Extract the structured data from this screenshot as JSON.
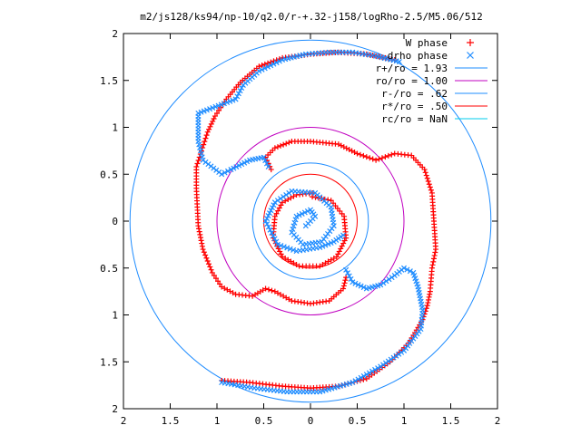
{
  "chart_data": {
    "type": "scatter",
    "title": "m2/js128/ks94/np-10/q2.0/r-+.32-j158/logRho-2.5/M5.06/512",
    "xlabel": "",
    "ylabel": "",
    "xlim": [
      -2,
      2
    ],
    "ylim": [
      -2,
      2
    ],
    "x_tick_labels": [
      "2",
      "1.5",
      "1",
      "0.5",
      "0",
      "0.5",
      "1",
      "1.5",
      "2"
    ],
    "y_tick_labels": [
      "2",
      "1.5",
      "1",
      "0.5",
      "0",
      "0.5",
      "1",
      "1.5",
      "2"
    ],
    "grid": false,
    "legend_position": "top-right",
    "series": [
      {
        "name": "W phase",
        "marker": "+",
        "color": "#ff0000",
        "arms": [
          [
            [
              0.9,
              1.72
            ],
            [
              0.6,
              1.78
            ],
            [
              0.3,
              1.8
            ],
            [
              0,
              1.78
            ],
            [
              -0.3,
              1.74
            ],
            [
              -0.55,
              1.65
            ],
            [
              -0.75,
              1.48
            ],
            [
              -0.9,
              1.3
            ],
            [
              -1.02,
              1.12
            ],
            [
              -1.1,
              0.95
            ],
            [
              -1.22,
              0.58
            ],
            [
              -1.22,
              0.35
            ],
            [
              -1.2,
              -0.05
            ],
            [
              -1.15,
              -0.3
            ],
            [
              -1.05,
              -0.55
            ],
            [
              -0.95,
              -0.7
            ],
            [
              -0.8,
              -0.78
            ],
            [
              -0.62,
              -0.8
            ],
            [
              -0.48,
              -0.72
            ],
            [
              -0.38,
              -0.75
            ],
            [
              -0.2,
              -0.85
            ],
            [
              0,
              -0.88
            ],
            [
              0.2,
              -0.85
            ],
            [
              0.35,
              -0.72
            ],
            [
              0.38,
              -0.6
            ]
          ],
          [
            [
              -0.95,
              -1.7
            ],
            [
              -0.65,
              -1.72
            ],
            [
              -0.3,
              -1.76
            ],
            [
              0,
              -1.78
            ],
            [
              0.3,
              -1.76
            ],
            [
              0.6,
              -1.68
            ],
            [
              0.85,
              -1.5
            ],
            [
              1.05,
              -1.3
            ],
            [
              1.2,
              -1.05
            ],
            [
              1.25,
              -0.9
            ],
            [
              1.28,
              -0.75
            ],
            [
              1.3,
              -0.5
            ],
            [
              1.34,
              -0.3
            ],
            [
              1.32,
              0
            ],
            [
              1.3,
              0.3
            ],
            [
              1.22,
              0.55
            ],
            [
              1.08,
              0.7
            ],
            [
              0.9,
              0.72
            ],
            [
              0.7,
              0.65
            ],
            [
              0.5,
              0.72
            ],
            [
              0.3,
              0.82
            ],
            [
              0,
              0.85
            ],
            [
              -0.2,
              0.85
            ],
            [
              -0.38,
              0.78
            ],
            [
              -0.48,
              0.68
            ],
            [
              -0.42,
              0.55
            ]
          ],
          [
            [
              0.02,
              0.26
            ],
            [
              0.22,
              0.22
            ],
            [
              0.36,
              0.05
            ],
            [
              0.38,
              -0.18
            ],
            [
              0.28,
              -0.38
            ],
            [
              0.1,
              -0.48
            ],
            [
              -0.12,
              -0.48
            ],
            [
              -0.3,
              -0.38
            ],
            [
              -0.4,
              -0.18
            ],
            [
              -0.38,
              0.05
            ],
            [
              -0.3,
              0.2
            ],
            [
              -0.15,
              0.28
            ],
            [
              0.02,
              0.3
            ]
          ]
        ]
      },
      {
        "name": "drho phase",
        "marker": "x",
        "color": "#1e8cff",
        "arms": [
          [
            [
              0.95,
              1.7
            ],
            [
              0.7,
              1.76
            ],
            [
              0.45,
              1.8
            ],
            [
              0.2,
              1.8
            ],
            [
              -0.05,
              1.78
            ],
            [
              -0.3,
              1.72
            ],
            [
              -0.55,
              1.6
            ],
            [
              -0.72,
              1.45
            ],
            [
              -0.8,
              1.3
            ],
            [
              -1.2,
              1.15
            ],
            [
              -1.2,
              0.85
            ],
            [
              -1.15,
              0.65
            ],
            [
              -0.95,
              0.5
            ],
            [
              -0.85,
              0.55
            ],
            [
              -0.65,
              0.65
            ],
            [
              -0.5,
              0.68
            ],
            [
              -0.45,
              0.58
            ]
          ],
          [
            [
              -0.95,
              -1.72
            ],
            [
              -0.6,
              -1.78
            ],
            [
              -0.25,
              -1.82
            ],
            [
              0.1,
              -1.82
            ],
            [
              0.45,
              -1.72
            ],
            [
              0.75,
              -1.55
            ],
            [
              1.0,
              -1.38
            ],
            [
              1.18,
              -1.15
            ],
            [
              1.2,
              -0.95
            ],
            [
              1.15,
              -0.7
            ],
            [
              1.1,
              -0.55
            ],
            [
              1.0,
              -0.5
            ],
            [
              0.9,
              -0.58
            ],
            [
              0.75,
              -0.68
            ],
            [
              0.6,
              -0.72
            ],
            [
              0.45,
              -0.65
            ],
            [
              0.38,
              -0.52
            ]
          ],
          [
            [
              -0.05,
              -0.05
            ],
            [
              0.05,
              0.05
            ],
            [
              0.0,
              0.12
            ],
            [
              -0.15,
              0.05
            ],
            [
              -0.2,
              -0.12
            ],
            [
              -0.08,
              -0.25
            ],
            [
              0.12,
              -0.22
            ],
            [
              0.25,
              -0.05
            ],
            [
              0.22,
              0.15
            ],
            [
              0.05,
              0.3
            ],
            [
              -0.2,
              0.32
            ],
            [
              -0.38,
              0.2
            ],
            [
              -0.48,
              0.0
            ],
            [
              -0.35,
              -0.25
            ],
            [
              -0.15,
              -0.32
            ],
            [
              0.1,
              -0.28
            ],
            [
              0.25,
              -0.22
            ],
            [
              0.35,
              -0.15
            ]
          ]
        ]
      },
      {
        "name": "r+/ro = 1.93",
        "type": "circle",
        "radius": 1.93,
        "color": "#1e8cff"
      },
      {
        "name": "ro/ro = 1.00",
        "type": "circle",
        "radius": 1.0,
        "color": "#c000c0"
      },
      {
        "name": "r-/ro = .62",
        "type": "circle",
        "radius": 0.62,
        "color": "#1e8cff"
      },
      {
        "name": "r*/ro = .50",
        "type": "circle",
        "radius": 0.5,
        "color": "#ff0000"
      },
      {
        "name": "rc/ro = NaN",
        "type": "circle",
        "radius": null,
        "color": "#00ccee"
      }
    ]
  }
}
